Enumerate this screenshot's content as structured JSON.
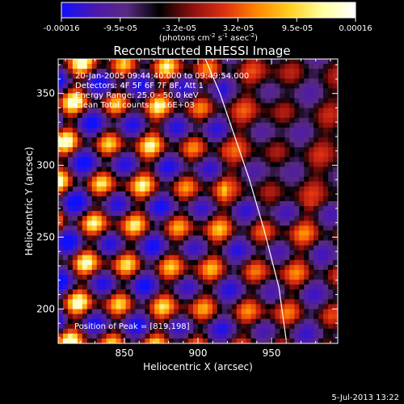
{
  "colorbar": {
    "ticks": [
      "-0.00016",
      "-9.5e-05",
      "-3.2e-05",
      "3.2e-05",
      "9.5e-05",
      "0.00016"
    ],
    "unit_label": {
      "pre": "(photons cm",
      "exp1": "-2",
      "mid": " s",
      "exp2": "-1",
      "post": " asec",
      "exp3": "-2",
      "end": ")"
    },
    "colors": [
      "#1010ff",
      "#4a18b0",
      "#5a2a80",
      "#000000",
      "#8a1010",
      "#e03010",
      "#ff8800",
      "#ffd020",
      "#ffffa0",
      "#ffffff"
    ]
  },
  "title": "Reconstructed RHESSI Image",
  "info_lines": [
    "20-Jan-2005 09:44:40.000 to 09:49:54.000",
    "Detectors: 4F 5F 6F 7F 8F, Att 1",
    "Energy Range: 25.0 - 50.0 keV",
    "Clean    Total counts: 5.16E+03"
  ],
  "peak_label": "Position of Peak = [819,198]",
  "footer_date": "5-Jul-2013 13:22",
  "chart_data": {
    "type": "heatmap",
    "title": "Reconstructed RHESSI Image",
    "xlabel": "Heliocentric X (arcsec)",
    "ylabel": "Heliocentric Y (arcsec)",
    "xlim": [
      805,
      995
    ],
    "ylim": [
      176,
      374
    ],
    "xticks": [
      850,
      900,
      950
    ],
    "yticks": [
      200,
      250,
      300,
      350
    ],
    "color_range": [
      -0.00016,
      0.00016
    ],
    "peak_position": [
      819,
      198
    ],
    "limb_curve": {
      "x": [
        905,
        915,
        925,
        935,
        945,
        955,
        960
      ],
      "y": [
        374,
        350,
        320,
        290,
        255,
        215,
        178
      ]
    }
  }
}
